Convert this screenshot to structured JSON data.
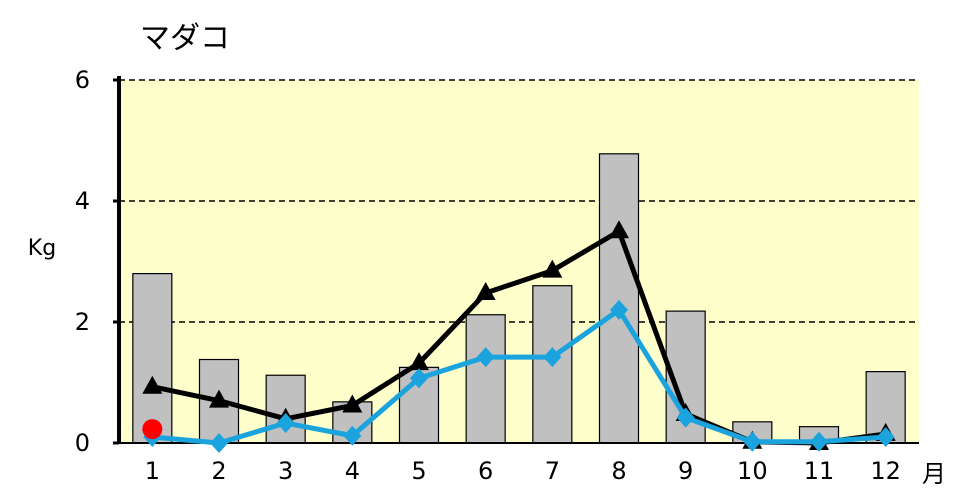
{
  "chart_data": {
    "type": "bar",
    "title": "マダコ",
    "xlabel": "月",
    "ylabel": "Kg",
    "categories": [
      "1",
      "2",
      "3",
      "4",
      "5",
      "6",
      "7",
      "8",
      "9",
      "10",
      "11",
      "12"
    ],
    "ylim": [
      0,
      6
    ],
    "yticks": [
      0,
      2,
      4,
      6
    ],
    "grid": "horizontal dashed",
    "plot_background": "#ffffcc",
    "bars": {
      "color": "#c0c0c0",
      "values": [
        2.8,
        1.38,
        1.12,
        0.68,
        1.25,
        2.12,
        2.6,
        4.78,
        2.18,
        0.35,
        0.27,
        1.18
      ]
    },
    "series": [
      {
        "type": "line",
        "marker": "triangle",
        "color": "#000000",
        "values": [
          0.93,
          0.7,
          0.4,
          0.62,
          1.32,
          2.48,
          2.85,
          3.5,
          0.48,
          0.02,
          0.0,
          0.15
        ]
      },
      {
        "type": "line",
        "marker": "diamond",
        "color": "#1aa3dd",
        "values": [
          0.1,
          0.0,
          0.33,
          0.12,
          1.07,
          1.42,
          1.42,
          2.2,
          0.42,
          0.02,
          0.02,
          0.1
        ]
      },
      {
        "type": "scatter",
        "marker": "circle",
        "color": "#ff0000",
        "x": [
          "1"
        ],
        "values": [
          0.23
        ]
      }
    ]
  }
}
